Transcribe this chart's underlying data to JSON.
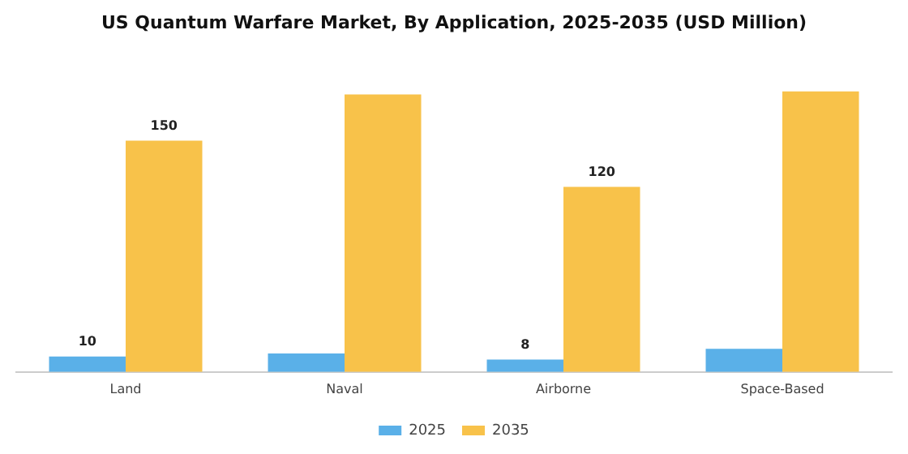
{
  "chart_data": {
    "type": "bar",
    "title": "US Quantum Warfare Market, By Application, 2025-2035 (USD Million)",
    "categories": [
      "Land",
      "Naval",
      "Airborne",
      "Space-Based"
    ],
    "series": [
      {
        "name": "2025",
        "color": "#5ab0e8",
        "values": [
          10,
          12,
          8,
          15
        ],
        "value_labels": [
          "10",
          null,
          "8",
          null
        ]
      },
      {
        "name": "2035",
        "color": "#f8c24a",
        "values": [
          150,
          180,
          120,
          182
        ],
        "value_labels": [
          "150",
          null,
          "120",
          null
        ]
      }
    ],
    "legend": "bottom",
    "grid": false,
    "tick_labels": "x"
  }
}
